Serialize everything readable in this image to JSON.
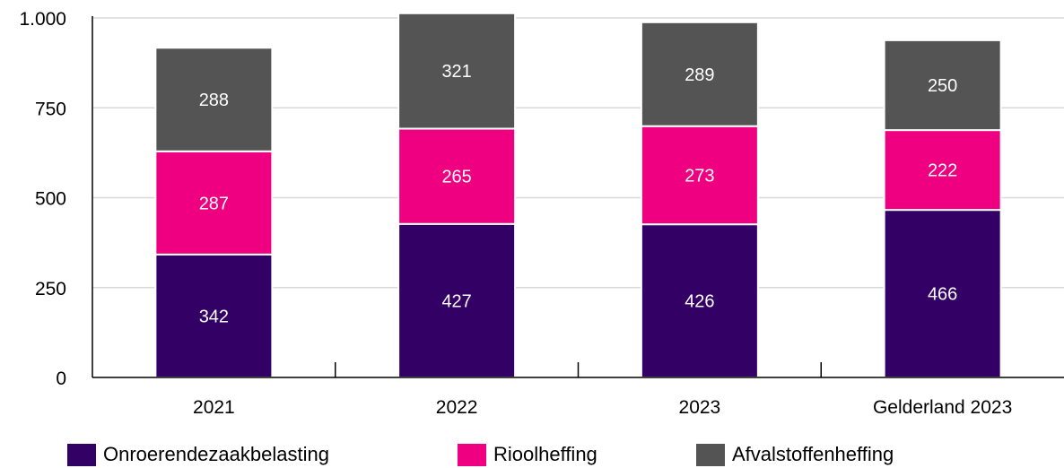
{
  "chart_data": {
    "type": "bar",
    "stacked": true,
    "categories": [
      "2021",
      "2022",
      "2023",
      "Gelderland 2023"
    ],
    "series": [
      {
        "name": "Onroerendezaakbelasting",
        "values": [
          342,
          427,
          426,
          466
        ],
        "color": "#330066"
      },
      {
        "name": "Rioolheffing",
        "values": [
          287,
          265,
          273,
          222
        ],
        "color": "#ee0080"
      },
      {
        "name": "Afvalstoffenheffing",
        "values": [
          288,
          321,
          289,
          250
        ],
        "color": "#545454"
      }
    ],
    "ylim": [
      0,
      1000
    ],
    "yticks": [
      0,
      250,
      500,
      750,
      1000
    ],
    "ytick_labels": [
      "0",
      "250",
      "500",
      "750",
      "1.000"
    ],
    "grid": true,
    "legend_position": "bottom",
    "title": "",
    "xlabel": "",
    "ylabel": ""
  }
}
